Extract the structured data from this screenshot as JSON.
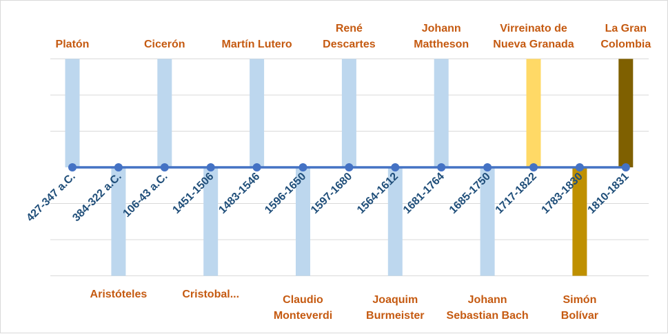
{
  "chart_data": {
    "type": "bar",
    "title": "",
    "xlabel": "",
    "ylabel": "",
    "ylim": [
      -3,
      3
    ],
    "grid": true,
    "legend": "none",
    "axis_color": "#4472c4",
    "events": [
      {
        "name": [
          "Platón"
        ],
        "dates": "427-347 a.C.",
        "value": 3,
        "color": "#bdd7ee"
      },
      {
        "name": [
          "Aristóteles"
        ],
        "dates": "384-322 a.C.",
        "value": -3,
        "color": "#bdd7ee"
      },
      {
        "name": [
          "Cicerón"
        ],
        "dates": "106-43 a.C.",
        "value": 3,
        "color": "#bdd7ee"
      },
      {
        "name": [
          "Cristobal..."
        ],
        "dates": "1451-1506",
        "value": -3,
        "color": "#bdd7ee"
      },
      {
        "name": [
          "Martín Lutero"
        ],
        "dates": "1483-1546",
        "value": 3,
        "color": "#bdd7ee"
      },
      {
        "name": [
          "Claudio",
          "Monteverdi"
        ],
        "dates": "1596-1650",
        "value": -3,
        "color": "#bdd7ee"
      },
      {
        "name": [
          "René",
          "Descartes"
        ],
        "dates": "1597-1680",
        "value": 3,
        "color": "#bdd7ee"
      },
      {
        "name": [
          "Joaquim",
          "Burmeister"
        ],
        "dates": "1564-1612",
        "value": -3,
        "color": "#bdd7ee"
      },
      {
        "name": [
          "Johann",
          "Mattheson"
        ],
        "dates": "1681-1764",
        "value": 3,
        "color": "#bdd7ee"
      },
      {
        "name": [
          "Johann",
          "Sebastian Bach"
        ],
        "dates": "1685-1750",
        "value": -3,
        "color": "#bdd7ee"
      },
      {
        "name": [
          "Virreinato de",
          "Nueva Granada"
        ],
        "dates": "1717-1822",
        "value": 3,
        "color": "#ffd966"
      },
      {
        "name": [
          "Simón",
          "Bolívar"
        ],
        "dates": "1783-1830",
        "value": -3,
        "color": "#bf9000"
      },
      {
        "name": [
          "La Gran",
          "Colombia"
        ],
        "dates": "1810-1831",
        "value": 3,
        "color": "#7f6000"
      }
    ]
  }
}
